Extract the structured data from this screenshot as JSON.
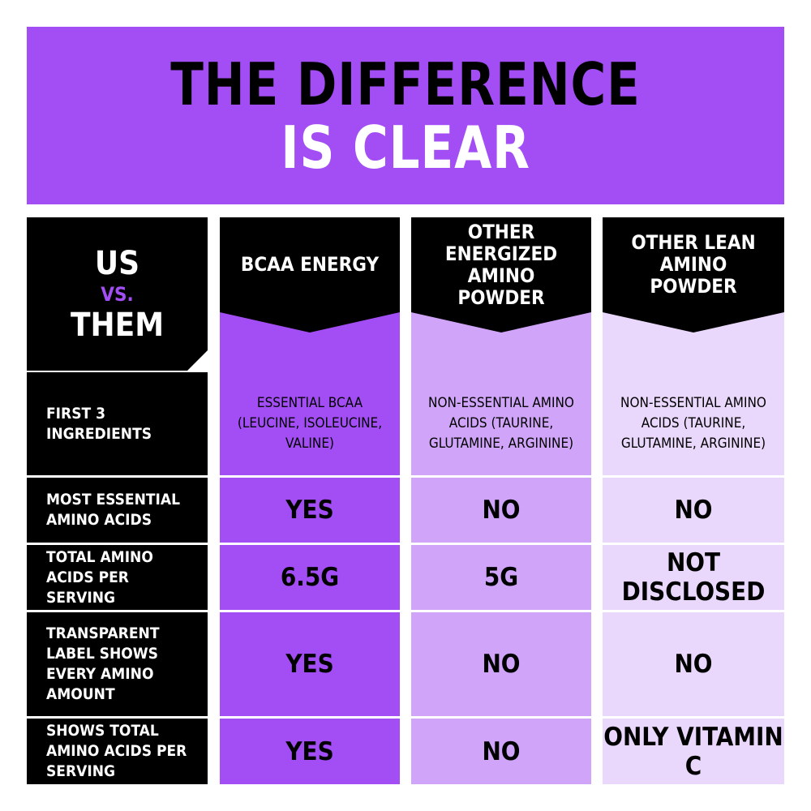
{
  "header": {
    "title_line_1": "THE DIFFERENCE",
    "title_line_2": "IS CLEAR"
  },
  "table": {
    "corner": {
      "line_1": "US",
      "line_2": "VS.",
      "line_3": "THEM"
    },
    "columns": [
      "BCAA ENERGY",
      "OTHER ENERGIZED AMINO POWDER",
      "OTHER LEAN AMINO POWDER"
    ],
    "rows": [
      {
        "label": "FIRST 3 INGREDIENTS",
        "cells": [
          "ESSENTIAL BCAA (LEUCINE, ISOLEUCINE, VALINE)",
          "NON-ESSENTIAL AMINO ACIDS (TAURINE, GLUTAMINE, ARGININE)",
          "NON-ESSENTIAL AMINO ACIDS (TAURINE, GLUTAMINE, ARGININE)"
        ]
      },
      {
        "label": "MOST ESSENTIAL AMINO ACIDS",
        "cells": [
          "YES",
          "NO",
          "NO"
        ]
      },
      {
        "label": "TOTAL AMINO ACIDS PER SERVING",
        "cells": [
          "6.5G",
          "5G",
          "NOT DISCLOSED"
        ]
      },
      {
        "label": "TRANSPARENT LABEL SHOWS EVERY AMINO AMOUNT",
        "cells": [
          "YES",
          "NO",
          "NO"
        ]
      },
      {
        "label": "SHOWS TOTAL AMINO ACIDS PER SERVING",
        "cells": [
          "YES",
          "NO",
          "ONLY VITAMIN C"
        ]
      }
    ]
  }
}
